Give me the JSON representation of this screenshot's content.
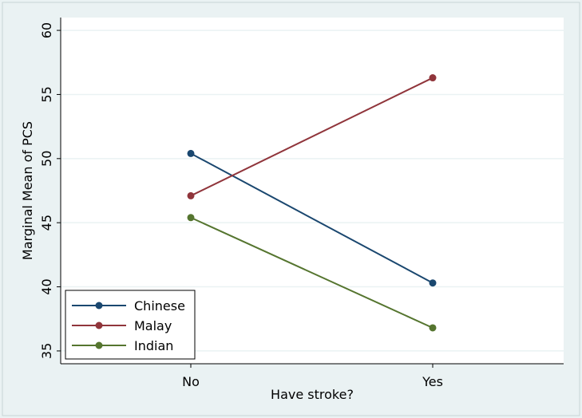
{
  "chart_data": {
    "type": "line",
    "title": "",
    "xlabel": "Have stroke?",
    "ylabel": "Marginal Mean of PCS",
    "categories": [
      "No",
      "Yes"
    ],
    "ylim": [
      34,
      61
    ],
    "yticks": [
      35,
      40,
      45,
      50,
      55,
      60
    ],
    "grid": true,
    "legend_position": "bottom-left",
    "series": [
      {
        "name": "Chinese",
        "values": [
          50.4,
          40.3
        ],
        "color": "#1a476f"
      },
      {
        "name": "Malay",
        "values": [
          47.1,
          56.3
        ],
        "color": "#90353b"
      },
      {
        "name": "Indian",
        "values": [
          45.4,
          36.8
        ],
        "color": "#55752f"
      }
    ],
    "colors": {
      "outer_background": "#eaf2f3",
      "plot_background": "#ffffff",
      "gridline": "#eaf2f3",
      "axis": "#000000"
    }
  }
}
